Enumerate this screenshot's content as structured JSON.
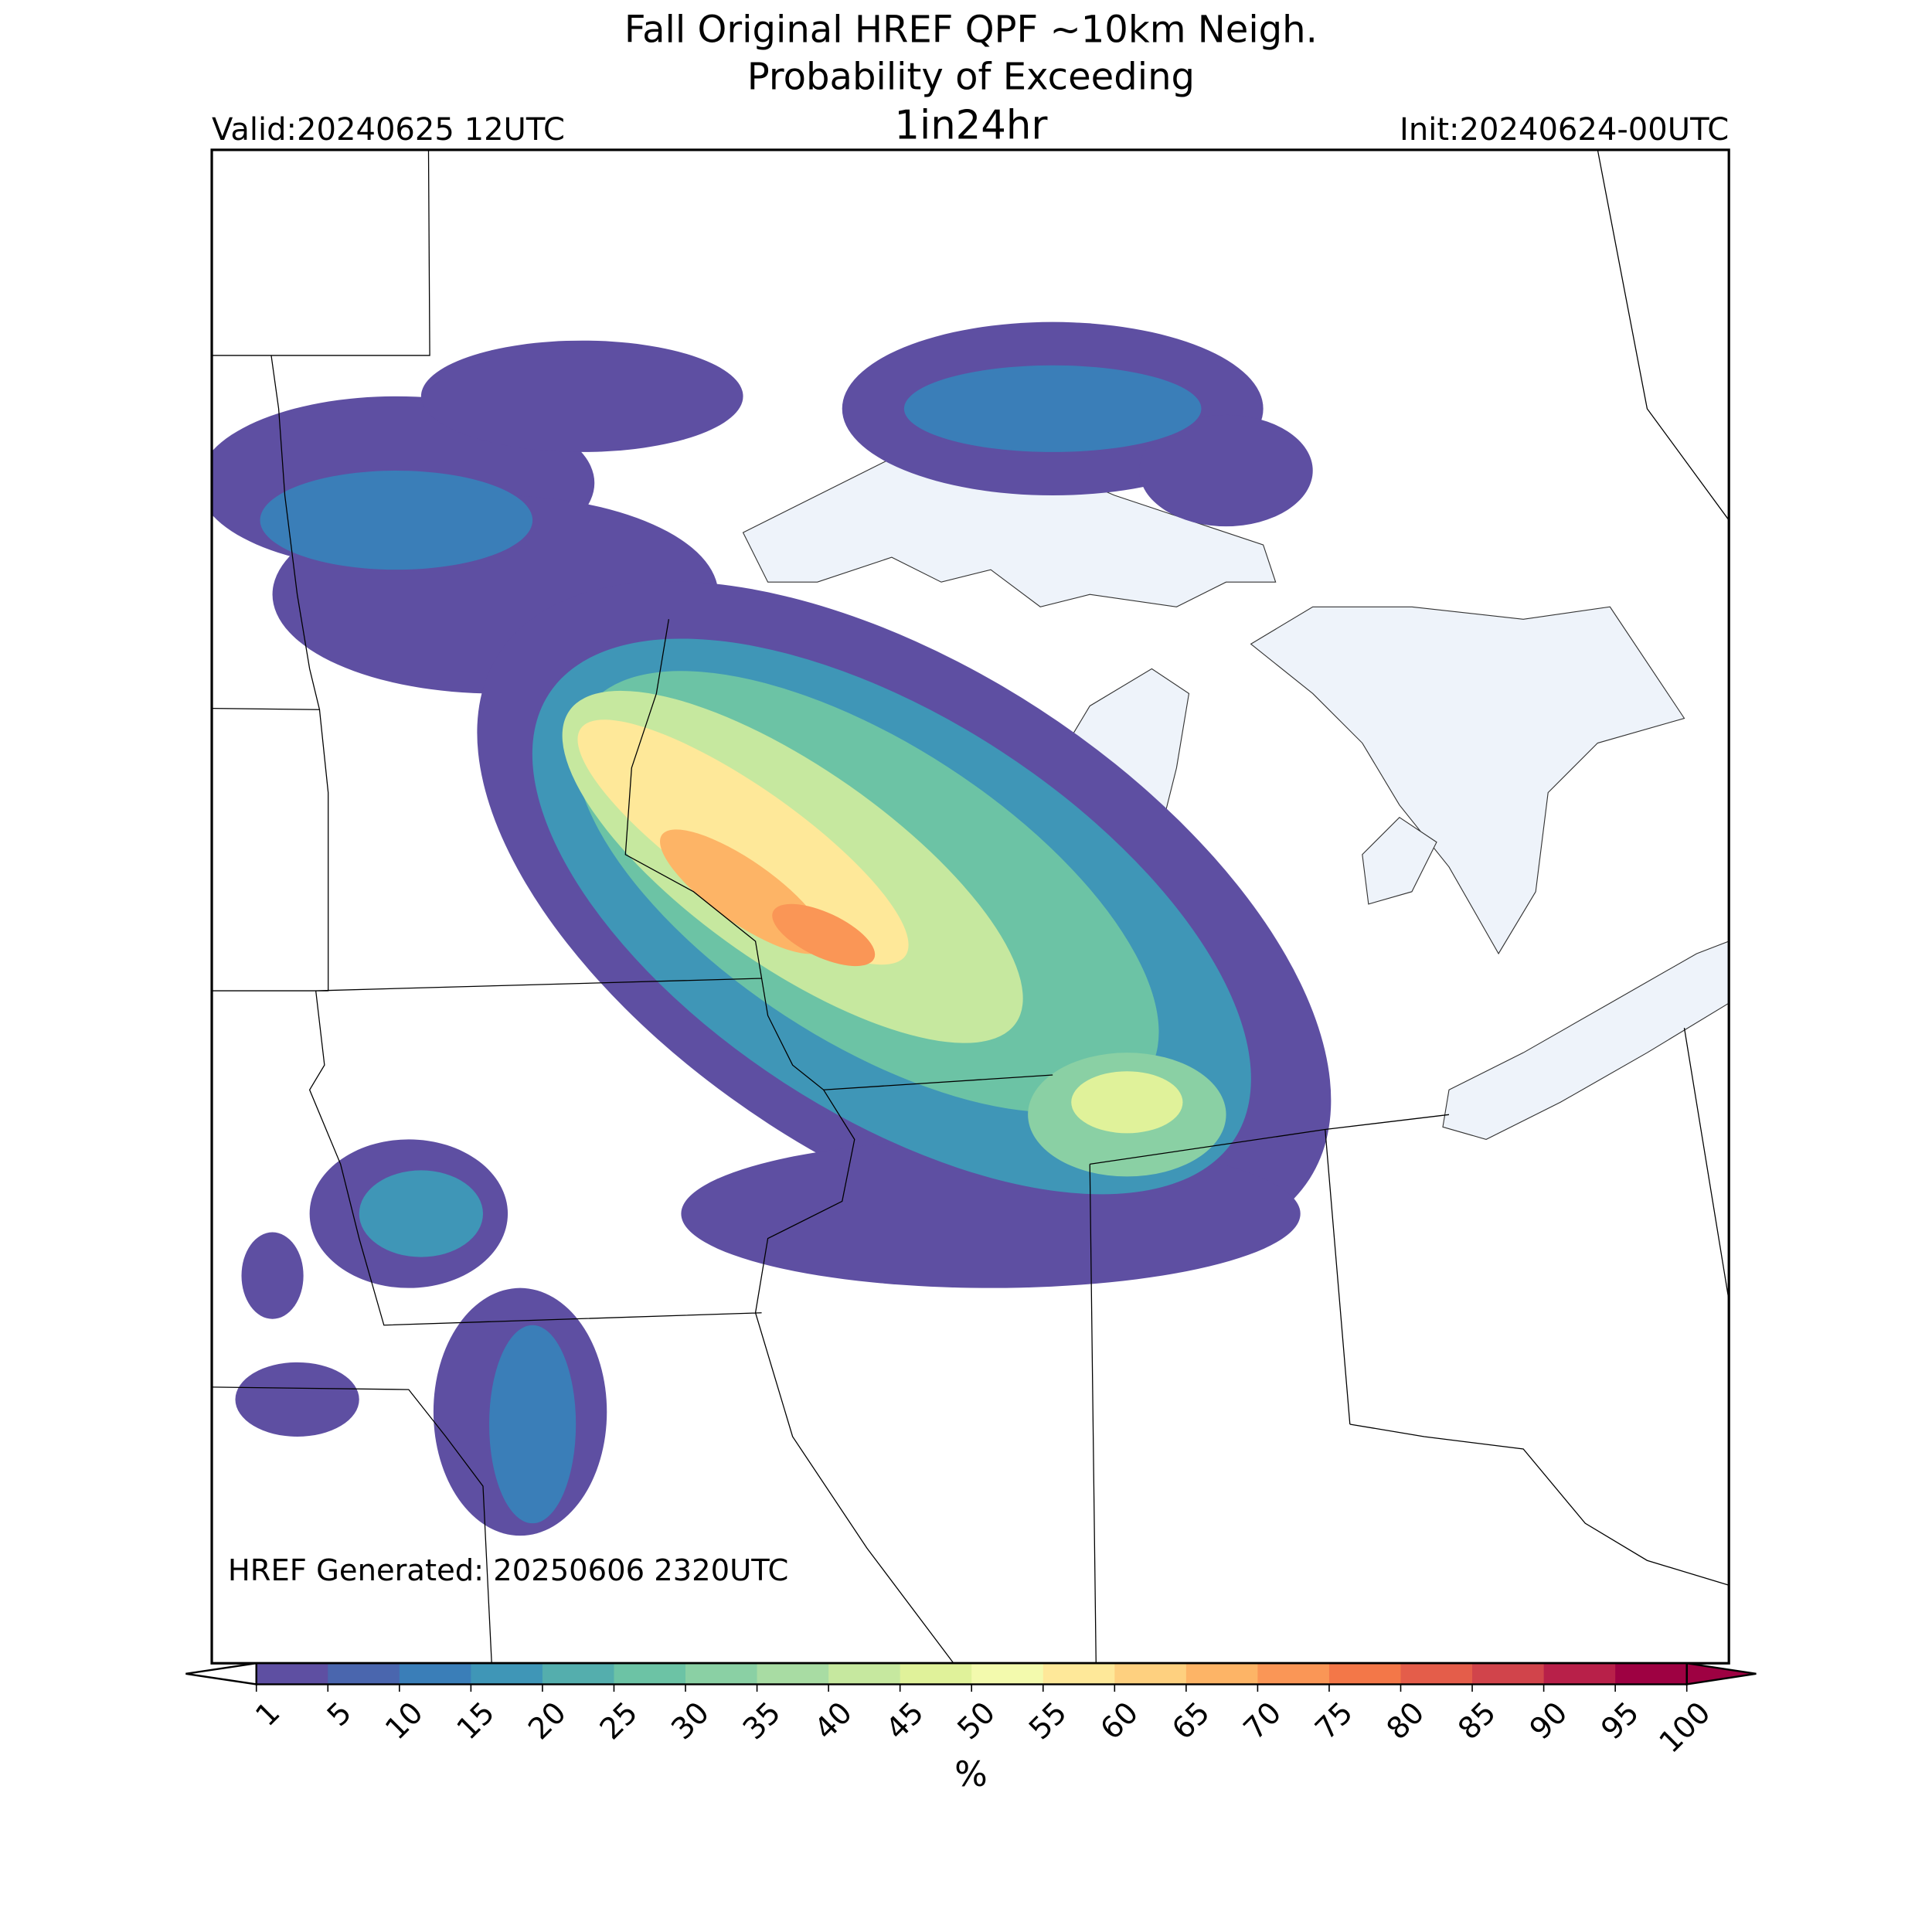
{
  "header": {
    "title_line1": "Fall Original HREF QPF ~10km Neigh.",
    "title_line2": "Probability of Exceeding",
    "threshold": "1in24hr",
    "valid": "Valid:20240625 12UTC",
    "init": "Init:20240624-00UTC"
  },
  "map": {
    "footer": "HREF Generated: 20250606 2320UTC"
  },
  "colorbar": {
    "label": "%",
    "ticks": [
      1,
      5,
      10,
      15,
      20,
      25,
      30,
      35,
      40,
      45,
      50,
      55,
      60,
      65,
      70,
      75,
      80,
      85,
      90,
      95,
      100
    ],
    "colors": [
      "#5e4fa2",
      "#4a66ae",
      "#3a7eb8",
      "#3f96b7",
      "#54aead",
      "#6cc3a5",
      "#8ad0a4",
      "#a8dca3",
      "#c6e89f",
      "#e0f29a",
      "#f3faad",
      "#fee899",
      "#fed07f",
      "#fdb466",
      "#fa9656",
      "#f37748",
      "#e45d4a",
      "#d1444b",
      "#b82049",
      "#9e0142"
    ],
    "under_color": "#ffffff",
    "over_color": "#9e0142"
  }
}
